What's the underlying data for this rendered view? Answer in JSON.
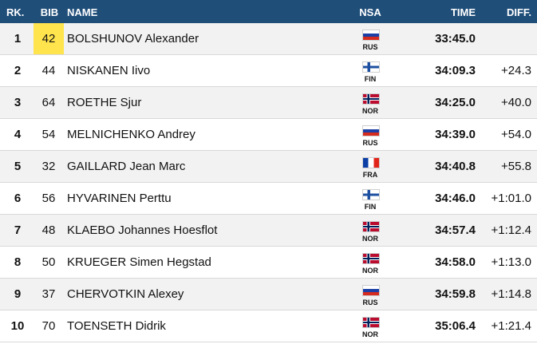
{
  "header": {
    "rank": "RK.",
    "bib": "BIB",
    "name": "NAME",
    "nsa": "NSA",
    "time": "TIME",
    "diff": "DIFF."
  },
  "rows": [
    {
      "rank": "1",
      "bib": "42",
      "name": "BOLSHUNOV Alexander",
      "nsa": "RUS",
      "time": "33:45.0",
      "diff": "",
      "highlight_bib": true
    },
    {
      "rank": "2",
      "bib": "44",
      "name": "NISKANEN Iivo",
      "nsa": "FIN",
      "time": "34:09.3",
      "diff": "+24.3"
    },
    {
      "rank": "3",
      "bib": "64",
      "name": "ROETHE Sjur",
      "nsa": "NOR",
      "time": "34:25.0",
      "diff": "+40.0"
    },
    {
      "rank": "4",
      "bib": "54",
      "name": "MELNICHENKO Andrey",
      "nsa": "RUS",
      "time": "34:39.0",
      "diff": "+54.0"
    },
    {
      "rank": "5",
      "bib": "32",
      "name": "GAILLARD Jean Marc",
      "nsa": "FRA",
      "time": "34:40.8",
      "diff": "+55.8"
    },
    {
      "rank": "6",
      "bib": "56",
      "name": "HYVARINEN Perttu",
      "nsa": "FIN",
      "time": "34:46.0",
      "diff": "+1:01.0"
    },
    {
      "rank": "7",
      "bib": "48",
      "name": "KLAEBO Johannes Hoesflot",
      "nsa": "NOR",
      "time": "34:57.4",
      "diff": "+1:12.4"
    },
    {
      "rank": "8",
      "bib": "50",
      "name": "KRUEGER Simen Hegstad",
      "nsa": "NOR",
      "time": "34:58.0",
      "diff": "+1:13.0"
    },
    {
      "rank": "9",
      "bib": "37",
      "name": "CHERVOTKIN Alexey",
      "nsa": "RUS",
      "time": "34:59.8",
      "diff": "+1:14.8"
    },
    {
      "rank": "10",
      "bib": "70",
      "name": "TOENSETH Didrik",
      "nsa": "NOR",
      "time": "35:06.4",
      "diff": "+1:21.4"
    }
  ],
  "colors": {
    "header_bg": "#1f4e79",
    "bib_highlight": "#ffe44d",
    "row_alt": "#f2f2f2"
  }
}
